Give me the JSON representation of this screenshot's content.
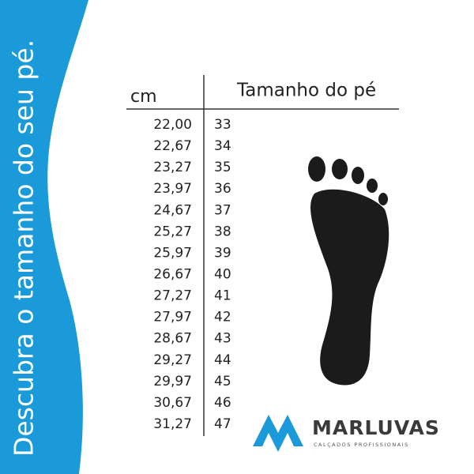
{
  "sidebar": {
    "text": "Descubra o tamanho do seu pé."
  },
  "table": {
    "headers": [
      "cm",
      "Tamanho do pé"
    ],
    "rows": [
      [
        "22,00",
        "33"
      ],
      [
        "22,67",
        "34"
      ],
      [
        "23,27",
        "35"
      ],
      [
        "23,97",
        "36"
      ],
      [
        "24,67",
        "37"
      ],
      [
        "25,27",
        "38"
      ],
      [
        "25,97",
        "39"
      ],
      [
        "26,67",
        "40"
      ],
      [
        "27,27",
        "41"
      ],
      [
        "27,97",
        "42"
      ],
      [
        "28,67",
        "43"
      ],
      [
        "29,27",
        "44"
      ],
      [
        "29,97",
        "45"
      ],
      [
        "30,67",
        "46"
      ],
      [
        "31,27",
        "47"
      ]
    ]
  },
  "logo": {
    "name": "MARLUVAS",
    "tagline": "CALÇADOS PROFISSIONAIS"
  }
}
